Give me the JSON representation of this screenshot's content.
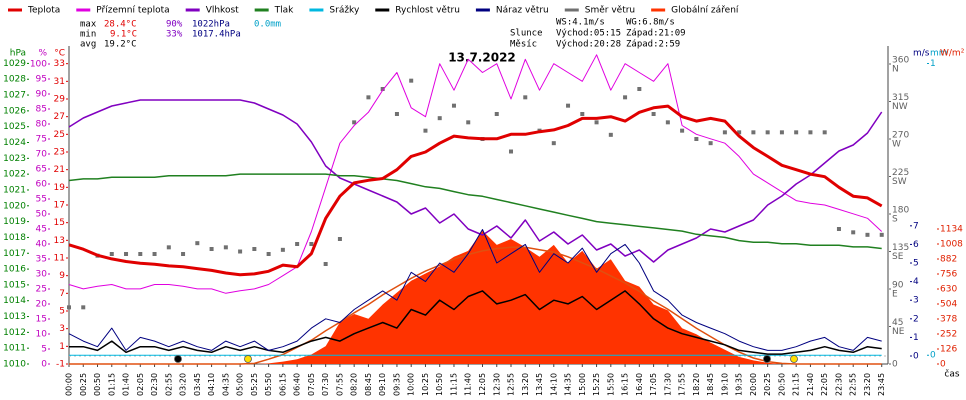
{
  "chart_data": {
    "type": "line",
    "title": "13.7.2022",
    "x_label": "čas",
    "categories": [
      "00:00",
      "00:25",
      "00:50",
      "01:15",
      "01:40",
      "02:05",
      "02:30",
      "02:55",
      "03:20",
      "03:45",
      "04:10",
      "04:35",
      "05:00",
      "05:25",
      "05:50",
      "06:15",
      "06:40",
      "07:05",
      "07:30",
      "07:55",
      "08:20",
      "08:45",
      "09:10",
      "09:35",
      "10:00",
      "10:25",
      "10:50",
      "11:15",
      "11:40",
      "12:05",
      "12:30",
      "12:55",
      "13:20",
      "13:45",
      "14:10",
      "14:35",
      "15:00",
      "15:25",
      "15:50",
      "16:15",
      "16:40",
      "17:05",
      "17:30",
      "17:55",
      "18:20",
      "18:45",
      "19:10",
      "19:35",
      "20:00",
      "20:25",
      "20:50",
      "21:15",
      "21:40",
      "22:05",
      "22:30",
      "22:55",
      "23:20",
      "23:45"
    ],
    "axes": [
      {
        "id": "hpa",
        "label": "hPa",
        "color": "#008000",
        "lim": [
          1010,
          1030.1
        ],
        "ticks": [
          1010,
          1011,
          1012,
          1013,
          1014,
          1015,
          1016,
          1017,
          1018,
          1019,
          1020,
          1021,
          1022,
          1023,
          1024,
          1025,
          1026,
          1027,
          1028,
          1029
        ]
      },
      {
        "id": "pct",
        "label": "%",
        "color": "#c000c0",
        "lim": [
          0,
          106
        ],
        "ticks": [
          0,
          5,
          10,
          15,
          20,
          25,
          30,
          35,
          40,
          45,
          50,
          55,
          60,
          65,
          70,
          75,
          80,
          85,
          90,
          95,
          100
        ]
      },
      {
        "id": "temp",
        "label": "°C",
        "color": "#e00000",
        "lim": [
          -1,
          35
        ],
        "ticks": [
          -1,
          1,
          3,
          5,
          7,
          9,
          11,
          13,
          15,
          17,
          19,
          21,
          23,
          25,
          27,
          29,
          31,
          33
        ]
      },
      {
        "id": "dir",
        "color": "#606060",
        "lim": [
          0,
          381.6
        ],
        "ticks": [
          0,
          {
            "value": 45,
            "label": "NE"
          },
          {
            "value": 90,
            "label": "E"
          },
          {
            "value": 135,
            "label": "SE"
          },
          {
            "value": 180,
            "label": "S"
          },
          {
            "value": 225,
            "label": "SW"
          },
          {
            "value": 270,
            "label": "W"
          },
          {
            "value": 315,
            "label": "NW"
          },
          {
            "value": 360,
            "label": "N"
          }
        ]
      },
      {
        "id": "ms",
        "label": "m/s",
        "color": "#000080",
        "lim": [
          -0.43,
          16.67
        ],
        "ticks": [
          0,
          1,
          2,
          3,
          4,
          5,
          6,
          7
        ]
      },
      {
        "id": "mm",
        "label": "mm",
        "color": "#00a0c8",
        "lim": [
          -0.03,
          1.06
        ],
        "ticks": [
          0,
          1
        ]
      },
      {
        "id": "wm2",
        "label": "W/m²",
        "color": "#e02000",
        "lim": [
          0,
          2671
        ],
        "ticks": [
          0,
          126,
          252,
          378,
          504,
          630,
          756,
          882,
          1008,
          1134
        ]
      }
    ],
    "series": [
      {
        "name": "Teplota",
        "color": "#e00000",
        "axis": "temp",
        "style": "line",
        "width": 3,
        "values": [
          12.5,
          12.0,
          11.3,
          10.9,
          10.6,
          10.4,
          10.3,
          10.1,
          10.0,
          9.8,
          9.6,
          9.3,
          9.1,
          9.2,
          9.5,
          10.2,
          10.0,
          11.5,
          15.5,
          18.0,
          19.5,
          19.8,
          20.0,
          21.0,
          22.5,
          23.0,
          24.0,
          24.8,
          24.6,
          24.5,
          24.5,
          25.0,
          25.0,
          25.3,
          25.5,
          26.0,
          26.8,
          26.8,
          27.0,
          26.5,
          27.5,
          28.0,
          28.2,
          27.0,
          26.5,
          26.8,
          26.5,
          24.8,
          23.5,
          22.5,
          21.5,
          21.0,
          20.5,
          20.2,
          19.0,
          18.0,
          17.8,
          16.9
        ]
      },
      {
        "name": "Přízemní teplota",
        "color": "#e000e0",
        "axis": "temp",
        "style": "line",
        "width": 1,
        "values": [
          8.0,
          7.5,
          7.8,
          8.0,
          7.5,
          7.5,
          8.0,
          8.0,
          7.8,
          7.5,
          7.5,
          7.0,
          7.3,
          7.5,
          8.0,
          9.0,
          10.0,
          14.0,
          19.0,
          24.0,
          26.0,
          27.5,
          30.0,
          32.0,
          28.0,
          27.0,
          33.0,
          30.0,
          33.5,
          32.0,
          33.0,
          29.0,
          33.5,
          30.0,
          33.0,
          32.0,
          31.0,
          34.0,
          30.0,
          33.0,
          32.0,
          31.0,
          33.0,
          26.0,
          25.0,
          24.5,
          24.0,
          22.5,
          20.5,
          19.5,
          18.5,
          17.5,
          17.2,
          17.0,
          16.5,
          16.0,
          15.5,
          14.0
        ]
      },
      {
        "name": "Vlhkost",
        "color": "#8000c0",
        "axis": "pct",
        "style": "line",
        "width": 1.5,
        "values": [
          79,
          82,
          84,
          86,
          87,
          88,
          88,
          88,
          88,
          88,
          88,
          88,
          88,
          87,
          85,
          83,
          80,
          74,
          66,
          62,
          60,
          58,
          56,
          54,
          50,
          52,
          47,
          50,
          45,
          43,
          46,
          42,
          48,
          41,
          44,
          40,
          43,
          38,
          40,
          36,
          38,
          34,
          38,
          40,
          42,
          45,
          44,
          46,
          48,
          53,
          56,
          60,
          63,
          67,
          71,
          73,
          77,
          84
        ]
      },
      {
        "name": "Tlak",
        "color": "#208020",
        "axis": "hpa",
        "style": "line",
        "width": 1.5,
        "values": [
          1021.6,
          1021.7,
          1021.7,
          1021.8,
          1021.8,
          1021.8,
          1021.8,
          1021.9,
          1021.9,
          1021.9,
          1021.9,
          1021.9,
          1022.0,
          1022.0,
          1022.0,
          1022.0,
          1022.0,
          1022.0,
          1022.0,
          1021.9,
          1021.9,
          1021.8,
          1021.7,
          1021.6,
          1021.4,
          1021.2,
          1021.1,
          1020.9,
          1020.7,
          1020.6,
          1020.4,
          1020.2,
          1020.0,
          1019.8,
          1019.6,
          1019.4,
          1019.2,
          1019.0,
          1018.9,
          1018.8,
          1018.7,
          1018.6,
          1018.5,
          1018.4,
          1018.2,
          1018.1,
          1018.0,
          1017.8,
          1017.7,
          1017.7,
          1017.6,
          1017.6,
          1017.5,
          1017.5,
          1017.5,
          1017.4,
          1017.4,
          1017.3
        ]
      },
      {
        "name": "Srážky",
        "color": "#00b8e0",
        "axis": "mm",
        "style": "line",
        "width": 1,
        "values": [
          0,
          0,
          0,
          0,
          0,
          0,
          0,
          0,
          0,
          0,
          0,
          0,
          0,
          0,
          0,
          0,
          0,
          0,
          0,
          0,
          0,
          0,
          0,
          0,
          0,
          0,
          0,
          0,
          0,
          0,
          0,
          0,
          0,
          0,
          0,
          0,
          0,
          0,
          0,
          0,
          0,
          0,
          0,
          0,
          0,
          0,
          0,
          0,
          0,
          0,
          0,
          0,
          0,
          0,
          0,
          0,
          0,
          0
        ]
      },
      {
        "name": "Rychlost větru",
        "color": "#000000",
        "axis": "ms",
        "style": "line",
        "width": 1.5,
        "values": [
          0.5,
          0.5,
          0.3,
          0.8,
          0.2,
          0.5,
          0.5,
          0.3,
          0.5,
          0.3,
          0.2,
          0.5,
          0.3,
          0.5,
          0.3,
          0.2,
          0.5,
          0.8,
          1.0,
          0.8,
          1.2,
          1.5,
          1.8,
          1.5,
          2.5,
          2.2,
          3.0,
          2.5,
          3.2,
          3.5,
          2.8,
          3.0,
          3.3,
          2.5,
          3.0,
          2.8,
          3.2,
          2.5,
          3.0,
          3.5,
          2.8,
          2.0,
          1.5,
          1.2,
          1.0,
          0.8,
          0.6,
          0.3,
          0.2,
          0.1,
          0.1,
          0.2,
          0.3,
          0.5,
          0.3,
          0.2,
          0.5,
          0.4
        ]
      },
      {
        "name": "Náraz větru",
        "color": "#000080",
        "axis": "ms",
        "style": "line",
        "width": 1,
        "values": [
          1.2,
          0.8,
          0.5,
          1.5,
          0.3,
          1.0,
          0.8,
          0.5,
          0.8,
          0.5,
          0.3,
          0.8,
          0.5,
          0.8,
          0.3,
          0.5,
          0.8,
          1.5,
          2.0,
          1.8,
          2.5,
          3.0,
          3.5,
          3.0,
          4.5,
          4.0,
          5.0,
          4.5,
          5.5,
          6.8,
          5.0,
          5.5,
          6.0,
          4.5,
          5.5,
          5.0,
          5.8,
          4.5,
          5.5,
          6.0,
          5.0,
          3.5,
          3.0,
          2.2,
          1.8,
          1.5,
          1.2,
          0.8,
          0.5,
          0.3,
          0.3,
          0.5,
          0.8,
          1.0,
          0.5,
          0.3,
          1.0,
          0.8
        ]
      },
      {
        "name": "Směr větru",
        "color": "#707070",
        "axis": "dir",
        "style": "points",
        "values": [
          68,
          68,
          130,
          132,
          132,
          132,
          132,
          140,
          132,
          145,
          138,
          140,
          135,
          138,
          132,
          137,
          144,
          144,
          120,
          150,
          290,
          320,
          330,
          300,
          340,
          280,
          295,
          310,
          290,
          270,
          300,
          255,
          320,
          280,
          265,
          310,
          300,
          290,
          275,
          320,
          330,
          300,
          290,
          280,
          270,
          265,
          278,
          278,
          278,
          278,
          278,
          278,
          278,
          278,
          162,
          158,
          155,
          155
        ]
      },
      {
        "name": "Globální záření",
        "color": "#ff3300",
        "axis": "wm2",
        "style": "area",
        "values": [
          0,
          0,
          0,
          0,
          0,
          0,
          0,
          0,
          0,
          0,
          0,
          0,
          0,
          0,
          5,
          20,
          40,
          80,
          150,
          350,
          420,
          380,
          500,
          600,
          700,
          760,
          820,
          900,
          950,
          1120,
          1000,
          1050,
          980,
          900,
          1000,
          850,
          950,
          800,
          880,
          700,
          650,
          500,
          450,
          300,
          250,
          180,
          120,
          60,
          30,
          10,
          0,
          0,
          0,
          0,
          0,
          0,
          0,
          0
        ]
      }
    ],
    "reference_curve": {
      "color": "#e05010",
      "axis": "wm2",
      "values": [
        0,
        0,
        0,
        0,
        0,
        0,
        0,
        0,
        0,
        0,
        0,
        0,
        0,
        5,
        40,
        80,
        140,
        200,
        280,
        350,
        430,
        500,
        580,
        650,
        720,
        780,
        830,
        880,
        920,
        950,
        970,
        980,
        980,
        960,
        940,
        900,
        850,
        800,
        740,
        680,
        610,
        530,
        460,
        380,
        300,
        230,
        160,
        100,
        50,
        20,
        5,
        0,
        0,
        0,
        0,
        0,
        0,
        0
      ]
    },
    "stats": {
      "max": {
        "label": "max",
        "temp": "28.4°C",
        "hum": "90%",
        "press": "1022hPa",
        "rain": "0.0mm"
      },
      "min": {
        "label": "min",
        "temp": "9.1°C",
        "hum": "33%",
        "press": "1017.4hPa"
      },
      "avg": {
        "label": "avg",
        "temp": "19.2°C"
      },
      "wind": {
        "ws": "WS:4.1m/s",
        "wg": "WG:6.8m/s"
      },
      "sun": {
        "label": "Slunce",
        "rise": "Východ:05:15",
        "set": "Západ:21:09"
      },
      "moon": {
        "label": "Měsíc",
        "rise": "Východ:20:28",
        "set": "Západ:2:59"
      }
    }
  }
}
